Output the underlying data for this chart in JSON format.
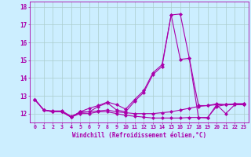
{
  "xlabel": "Windchill (Refroidissement éolien,°C)",
  "background_color": "#cceeff",
  "grid_color": "#aacccc",
  "line_color": "#aa00aa",
  "x_ticks": [
    0,
    1,
    2,
    3,
    4,
    5,
    6,
    7,
    8,
    9,
    10,
    11,
    12,
    13,
    14,
    15,
    16,
    17,
    18,
    19,
    20,
    21,
    22,
    23
  ],
  "ylim": [
    11.5,
    18.3
  ],
  "yticks": [
    12,
    13,
    14,
    15,
    16,
    17,
    18
  ],
  "s1": [
    12.8,
    12.2,
    12.1,
    12.1,
    11.8,
    12.1,
    12.1,
    12.4,
    12.6,
    12.2,
    12.1,
    12.7,
    13.2,
    14.2,
    14.65,
    17.55,
    17.6,
    15.1,
    11.78,
    11.75,
    12.5,
    12.0,
    12.5,
    12.5
  ],
  "s2": [
    12.8,
    12.2,
    12.1,
    12.1,
    11.8,
    12.1,
    12.3,
    12.45,
    12.65,
    12.5,
    12.25,
    12.8,
    13.3,
    14.3,
    14.75,
    17.55,
    15.05,
    15.1,
    12.45,
    12.45,
    12.55,
    12.5,
    12.55,
    12.55
  ],
  "s3": [
    12.8,
    12.2,
    12.1,
    12.1,
    11.8,
    12.0,
    12.0,
    12.1,
    12.1,
    12.0,
    11.9,
    11.85,
    11.8,
    11.75,
    11.75,
    11.75,
    11.75,
    11.78,
    11.78,
    11.78,
    12.4,
    12.5,
    12.5,
    12.5
  ],
  "s4": [
    12.8,
    12.2,
    12.15,
    12.15,
    11.85,
    12.05,
    12.1,
    12.15,
    12.2,
    12.1,
    12.05,
    12.0,
    12.0,
    12.0,
    12.05,
    12.1,
    12.2,
    12.3,
    12.4,
    12.45,
    12.5,
    12.5,
    12.55,
    12.55
  ],
  "figsize": [
    3.2,
    2.0
  ],
  "dpi": 100,
  "xlabel_fontsize": 5.5,
  "xtick_fontsize": 4.8,
  "ytick_fontsize": 5.5,
  "linewidth": 0.8,
  "markersize": 2.0
}
